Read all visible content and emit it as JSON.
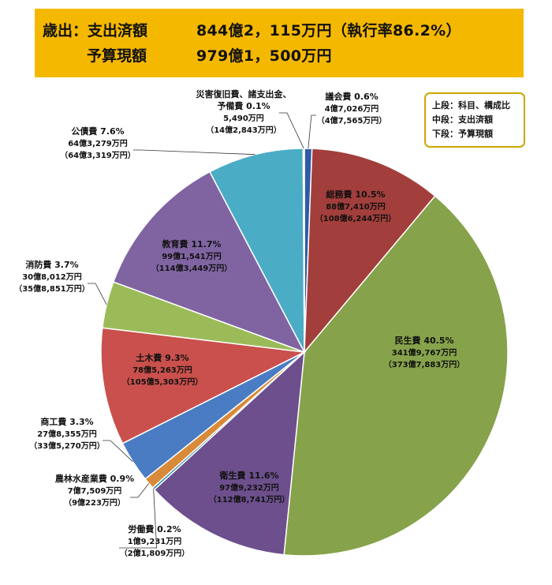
{
  "header": {
    "line1_label": "歳出：支出済額",
    "line1_value": "844億2，115万円（執行率86.2%）",
    "line2_label": "予算現額",
    "line2_value": "979億1，500万円"
  },
  "legend_box": {
    "line1": "上段：科目、構成比",
    "line2": "中段：支出済額",
    "line3": "下段：予算現額"
  },
  "chart_data": {
    "type": "pie",
    "title": "",
    "start": "top",
    "direction": "clockwise",
    "slices": [
      {
        "name": "議会費",
        "pct": 0.6,
        "pct_label": "0.6%",
        "spent": "4億7,026万円",
        "budget": "（4億7,565万円）",
        "color": "#2e5aa8"
      },
      {
        "name": "総務費",
        "pct": 10.5,
        "pct_label": "10.5%",
        "spent": "88億7,410万円",
        "budget": "（108億6,244万円）",
        "color": "#a23e3b"
      },
      {
        "name": "民生費",
        "pct": 40.5,
        "pct_label": "40.5%",
        "spent": "341億9,767万円",
        "budget": "（373億7,883万円）",
        "color": "#86a24a"
      },
      {
        "name": "衛生費",
        "pct": 11.6,
        "pct_label": "11.6%",
        "spent": "97億9,232万円",
        "budget": "（112億8,741万円）",
        "color": "#6c4f8c"
      },
      {
        "name": "労働費",
        "pct": 0.2,
        "pct_label": "0.2%",
        "spent": "1億9,231万円",
        "budget": "（2億1,809万円）",
        "color": "#2c8ca8"
      },
      {
        "name": "農林水産業費",
        "pct": 0.9,
        "pct_label": "0.9%",
        "spent": "7億7,509万円",
        "budget": "（9億223万円）",
        "color": "#d98a38"
      },
      {
        "name": "商工費",
        "pct": 3.3,
        "pct_label": "3.3%",
        "spent": "27億8,355万円",
        "budget": "（33億5,270万円）",
        "color": "#4a7cc4"
      },
      {
        "name": "土木費",
        "pct": 9.3,
        "pct_label": "9.3%",
        "spent": "78億5,263万円",
        "budget": "（105億5,303万円）",
        "color": "#c9504c"
      },
      {
        "name": "消防費",
        "pct": 3.7,
        "pct_label": "3.7%",
        "spent": "30億8,012万円",
        "budget": "（35億8,851万円）",
        "color": "#9bbb59"
      },
      {
        "name": "教育費",
        "pct": 11.7,
        "pct_label": "11.7%",
        "spent": "99億1,541万円",
        "budget": "（114億3,449万円）",
        "color": "#8064a2"
      },
      {
        "name": "公債費",
        "pct": 7.6,
        "pct_label": "7.6%",
        "spent": "64億3,279万円",
        "budget": "（64億3,319万円）",
        "color": "#4bacc6"
      },
      {
        "name": "災害復旧費、諸支出金、予備費",
        "name_lines": [
          "災害復旧費、諸支出金、",
          "予備費"
        ],
        "pct": 0.1,
        "pct_label": "0.1%",
        "spent": "5,490万円",
        "budget": "（14億2,843万円）",
        "color": "#d9d9d9"
      }
    ]
  }
}
